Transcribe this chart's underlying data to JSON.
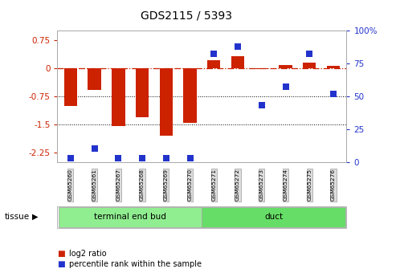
{
  "title": "GDS2115 / 5393",
  "samples": [
    "GSM65260",
    "GSM65261",
    "GSM65267",
    "GSM65268",
    "GSM65269",
    "GSM65270",
    "GSM65271",
    "GSM65272",
    "GSM65273",
    "GSM65274",
    "GSM65275",
    "GSM65276"
  ],
  "log2_ratio": [
    -1.0,
    -0.58,
    -1.55,
    -1.3,
    -1.8,
    -1.45,
    0.2,
    0.32,
    -0.02,
    0.07,
    0.14,
    0.05
  ],
  "percentile": [
    3,
    10,
    3,
    3,
    3,
    3,
    82,
    88,
    43,
    57,
    82,
    52
  ],
  "groups": [
    {
      "label": "terminal end bud",
      "start": 0,
      "end": 5,
      "color": "#90EE90"
    },
    {
      "label": "duct",
      "start": 6,
      "end": 11,
      "color": "#66DD66"
    }
  ],
  "ylim_left": [
    -2.5,
    1.0
  ],
  "ylim_right": [
    0,
    100
  ],
  "yticks_left": [
    -2.25,
    -1.5,
    -0.75,
    0.0,
    0.75
  ],
  "yticks_right": [
    0,
    25,
    50,
    75,
    100
  ],
  "hlines": [
    -0.75,
    -1.5
  ],
  "bar_color": "#CC2200",
  "dot_color": "#2233CC",
  "bg_color": "#FFFFFF",
  "plot_bg": "#FFFFFF",
  "tissue_label": "tissue",
  "legend_red": "log2 ratio",
  "legend_blue": "percentile rank within the sample",
  "left_tick_color": "#CC2200",
  "right_tick_color": "#2233CC",
  "bar_width": 0.55
}
